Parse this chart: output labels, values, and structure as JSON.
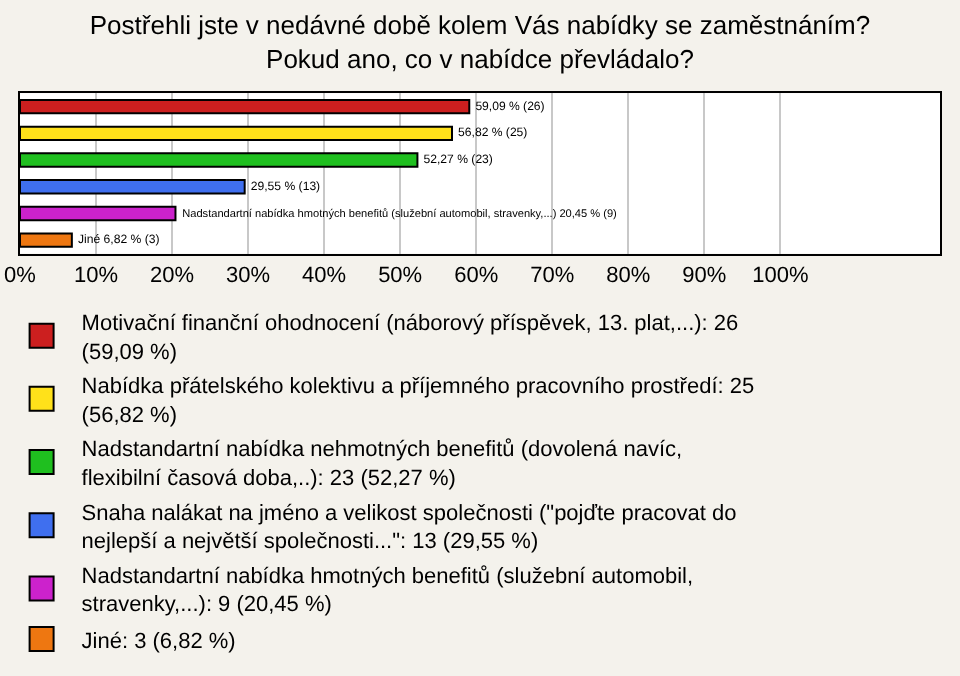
{
  "chart_data": {
    "type": "bar",
    "orientation": "horizontal",
    "title": "Postřehli jste v nedávné době kolem Vás nabídky se zaměstnáním? Pokud ano, co v nabídce převládalo?",
    "categories": [
      null,
      null,
      null,
      null,
      null,
      null
    ],
    "series": [
      {
        "name": "Motivační finanční ohodnocení (náborový příspěvek, 13. plat,...): 26 (59,09 %)",
        "color": "#cc1f1f",
        "values": [
          59.09,
          null,
          null,
          null,
          null,
          null
        ],
        "value_labels": [
          "59,09 % (26)",
          null,
          null,
          null,
          null,
          null
        ]
      },
      {
        "name": "Nabídka přátelského kolektivu a příjemného pracovního prostředí: 25 (56,82 %)",
        "color": "#ffe11a",
        "values": [
          null,
          56.82,
          null,
          null,
          null,
          null
        ],
        "value_labels": [
          null,
          "56,82 % (25)",
          null,
          null,
          null,
          null
        ]
      },
      {
        "name": "Nadstandartní nabídka nehmotných benefitů (dovolená navíc, flexibilní časová doba,..): 23 (52,27 %)",
        "color": "#1fbf1f",
        "values": [
          null,
          null,
          52.27,
          null,
          null,
          null
        ],
        "value_labels": [
          null,
          null,
          "52,27 % (23)",
          null,
          null,
          null
        ]
      },
      {
        "name": "Snaha nalákat na jméno a velikost společnosti (\"pojďte pracovat do nejlepší a největší společnosti...\": 13 (29,55 %)",
        "color": "#3f6fef",
        "values": [
          null,
          null,
          null,
          29.55,
          null,
          null
        ],
        "value_labels": [
          null,
          null,
          null,
          "29,55 % (13)",
          null,
          null
        ]
      },
      {
        "name": "Nadstandartní nabídka hmotných benefitů (služební automobil, stravenky,...): 9 (20,45 %)",
        "color": "#cc22cc",
        "values": [
          null,
          null,
          null,
          null,
          20.45,
          null
        ],
        "value_labels": [
          null,
          null,
          null,
          null,
          "Nadstandartní nabídka hmotných benefitů (služební automobil, stravenky,...) 20,45 % (9)",
          null
        ]
      },
      {
        "name": "Jiné: 3 (6,82 %)",
        "color": "#ee7711",
        "values": [
          null,
          null,
          null,
          null,
          null,
          6.82
        ],
        "value_labels": [
          null,
          null,
          null,
          null,
          null,
          "Jiné 6,82 % (3)"
        ]
      }
    ],
    "xlim": [
      0,
      121
    ],
    "xticks": [
      {
        "value": 0,
        "label": "0%"
      },
      {
        "value": 10,
        "label": "10%"
      },
      {
        "value": 20,
        "label": "20%"
      },
      {
        "value": 30,
        "label": "30%"
      },
      {
        "value": 40,
        "label": "40%"
      },
      {
        "value": 50,
        "label": "50%"
      },
      {
        "value": 60,
        "label": "60%"
      },
      {
        "value": 70,
        "label": "70%"
      },
      {
        "value": 80,
        "label": "80%"
      },
      {
        "value": 90,
        "label": "90%"
      },
      {
        "value": 100,
        "label": "100%"
      }
    ],
    "grid": "x",
    "legend": "bottom",
    "tick_labels": "x"
  }
}
